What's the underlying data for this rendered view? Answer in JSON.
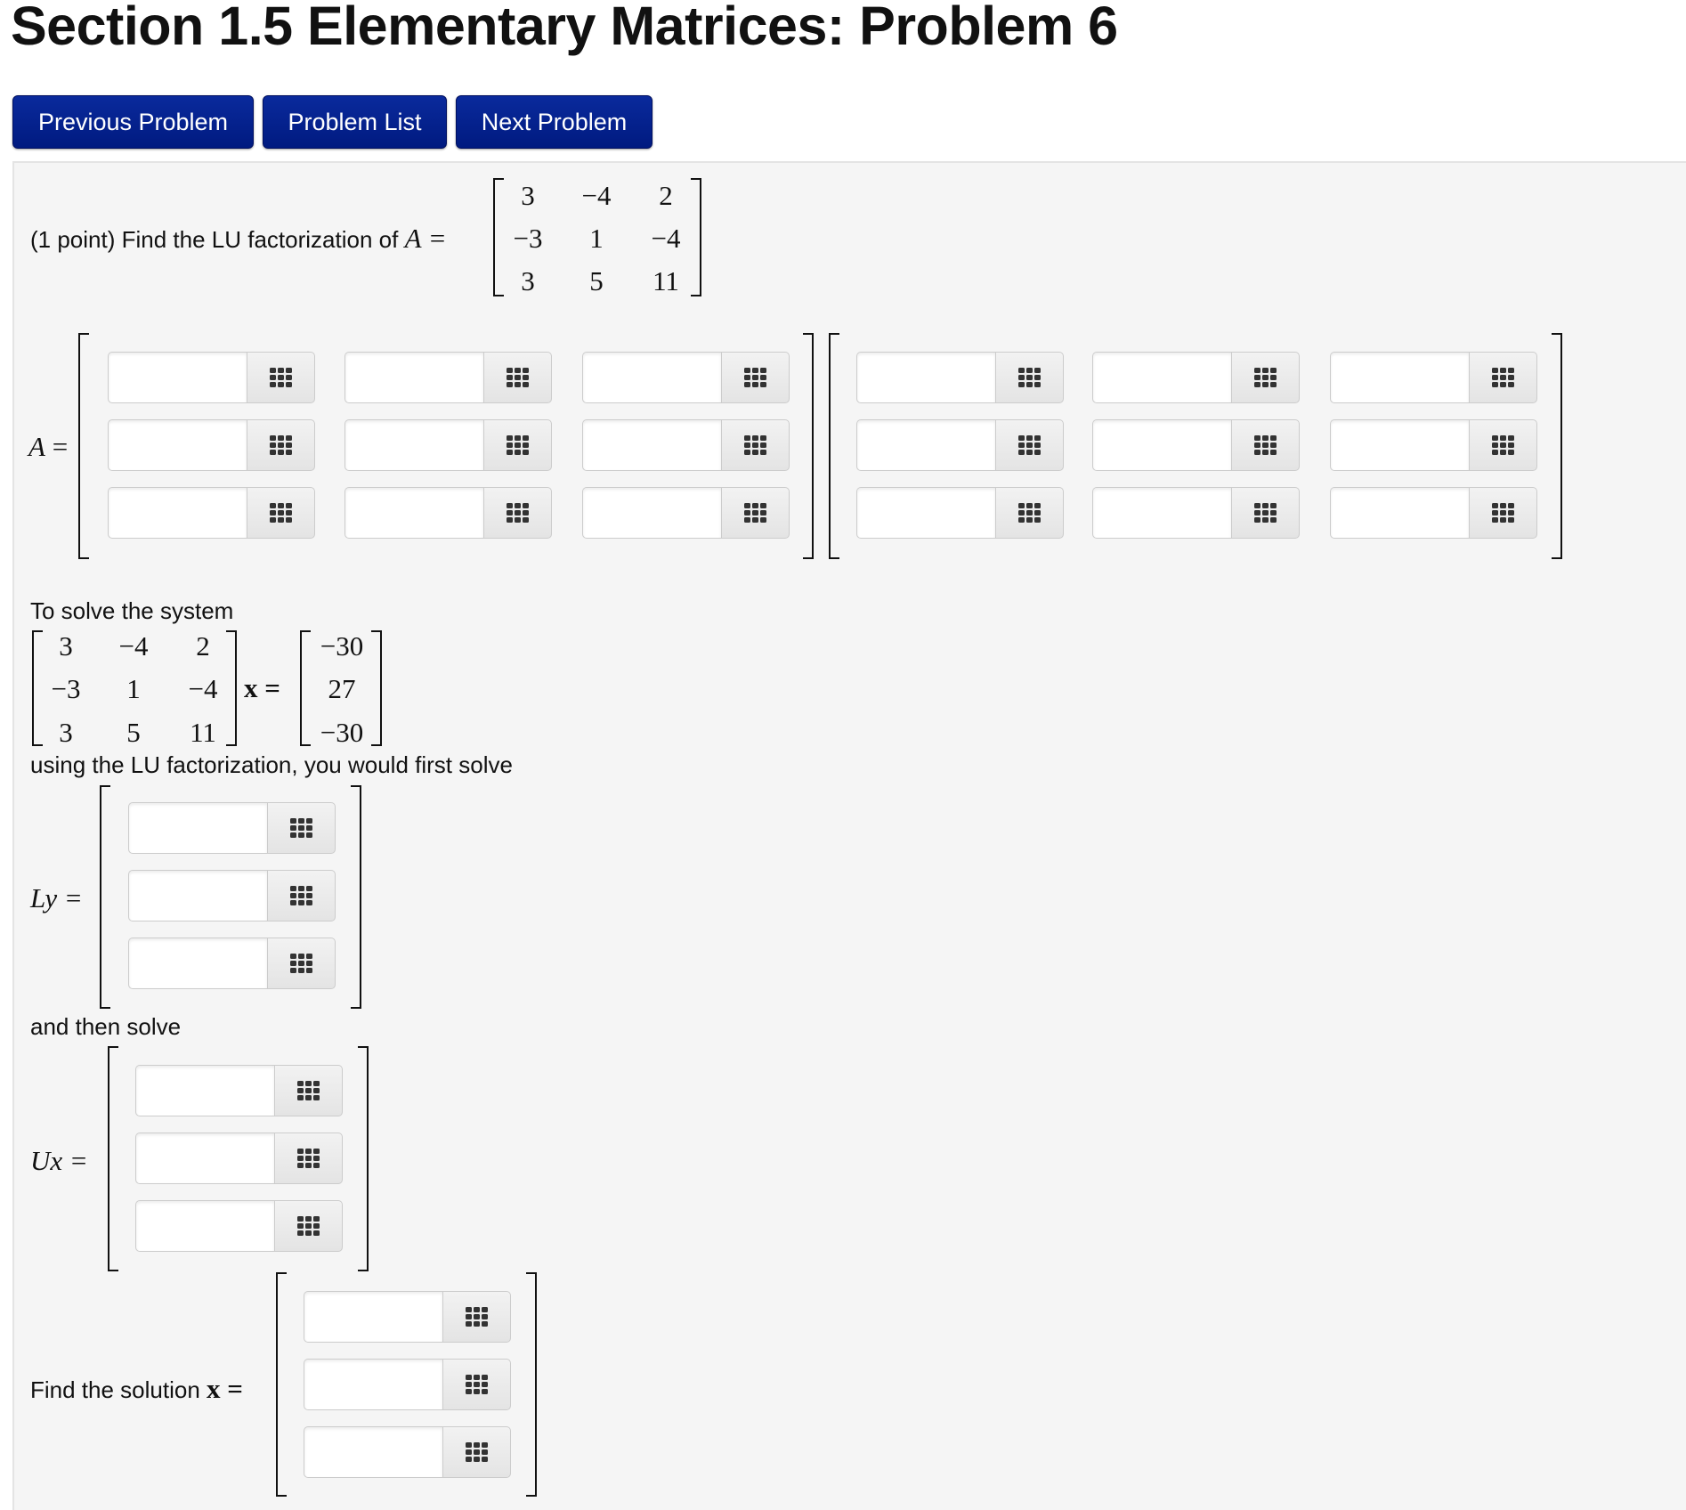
{
  "title": "Section 1.5 Elementary Matrices: Problem 6",
  "nav": {
    "previous": "Previous Problem",
    "list": "Problem List",
    "next": "Next Problem"
  },
  "colors": {
    "button": "#001a80",
    "panel": "#f5f5f5"
  },
  "problem": {
    "intro": "(1 point) Find the LU factorization of",
    "A_label": "A =",
    "A": [
      [
        "3",
        "−4",
        "2"
      ],
      [
        "−3",
        "1",
        "−4"
      ],
      [
        "3",
        "5",
        "11"
      ]
    ],
    "lu_label": "A =",
    "system_intro": "To solve the system",
    "x_eq": "x =",
    "b": [
      "−30",
      "27",
      "−30"
    ],
    "using_text": "using the LU factorization, you would first solve",
    "ly_label": "Ly =",
    "then_text": "and then solve",
    "ux_label": "Ux =",
    "solution_label": "Find the solution",
    "solution_eq": "x =",
    "answer_icon": "keypad-grid-icon"
  }
}
